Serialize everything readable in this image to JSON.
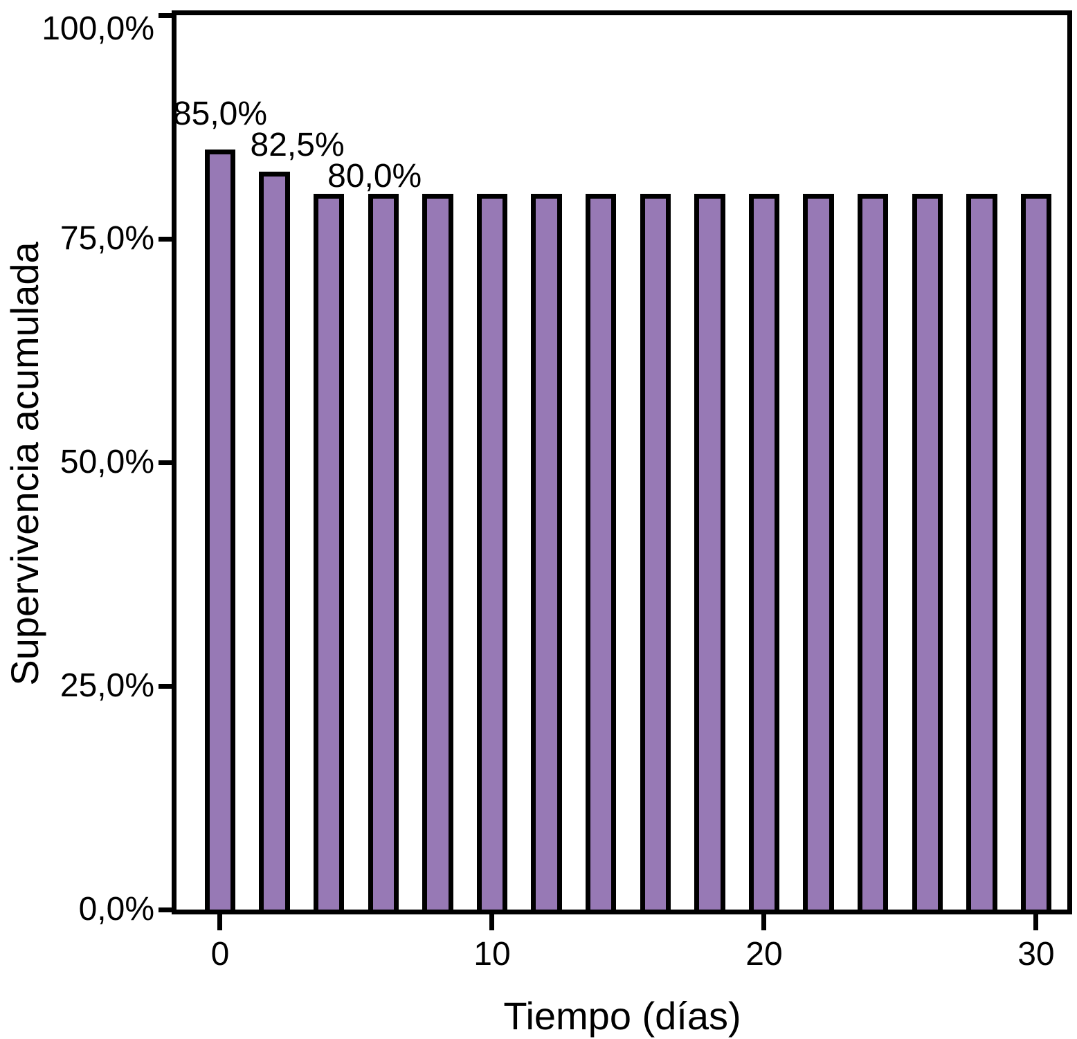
{
  "chart_data": {
    "type": "bar",
    "title": "",
    "xlabel": "Tiempo (días)",
    "ylabel": "Supervivencia acumulada",
    "x": [
      0,
      2,
      4,
      6,
      8,
      10,
      12,
      14,
      16,
      18,
      20,
      22,
      24,
      26,
      28,
      30
    ],
    "values": [
      85.0,
      82.5,
      80.0,
      80.0,
      80.0,
      80.0,
      80.0,
      80.0,
      80.0,
      80.0,
      80.0,
      80.0,
      80.0,
      80.0,
      80.0,
      80.0
    ],
    "value_labels": [
      {
        "day": 0,
        "text": "85,0%"
      },
      {
        "day": 2,
        "text": "82,5%"
      },
      {
        "day": 4,
        "text": "80,0%"
      }
    ],
    "xticks": [
      {
        "v": 0,
        "label": "0"
      },
      {
        "v": 10,
        "label": "10"
      },
      {
        "v": 20,
        "label": "20"
      },
      {
        "v": 30,
        "label": "30"
      }
    ],
    "yticks": [
      {
        "v": 0,
        "label": "0,0%"
      },
      {
        "v": 25,
        "label": "25,0%"
      },
      {
        "v": 50,
        "label": "50,0%"
      },
      {
        "v": 75,
        "label": "75,0%"
      },
      {
        "v": 100,
        "label": "100,0%"
      }
    ],
    "xlim": [
      -1.603,
      31.147
    ],
    "ylim": [
      0,
      100
    ],
    "bar_width_days": 1.13,
    "grid": false,
    "legend": null,
    "colors": {
      "bar_fill": "#9779b5",
      "bar_stroke": "#000000",
      "axis": "#000000",
      "text": "#000000",
      "background": "#ffffff"
    }
  }
}
